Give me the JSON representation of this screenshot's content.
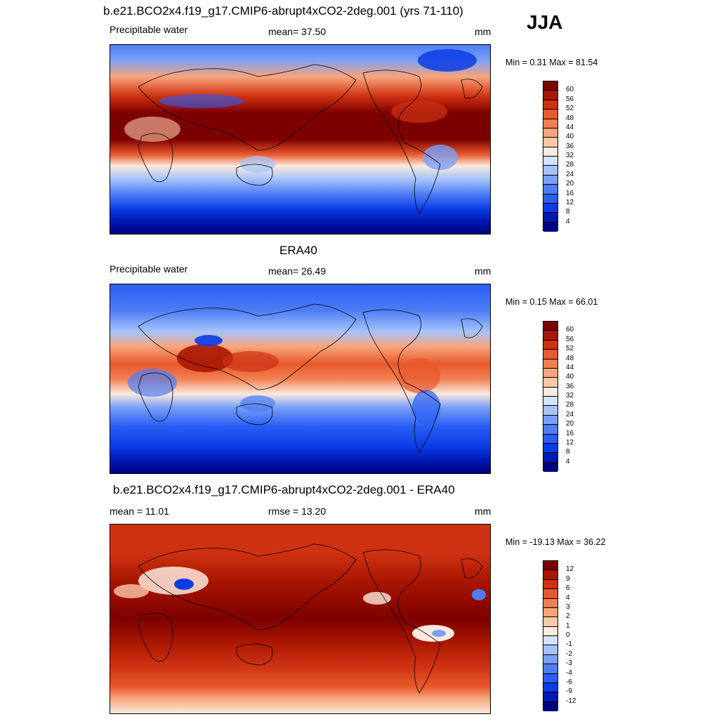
{
  "season": "JJA",
  "colors": {
    "abs": [
      "#000080",
      "#0019b4",
      "#0a3ce6",
      "#2a5ef5",
      "#4f7df5",
      "#7aa0f7",
      "#a5c3fa",
      "#d2e4fb",
      "#fbe9dd",
      "#fbc8a8",
      "#f8a47b",
      "#f27f52",
      "#e8592c",
      "#cf3212",
      "#a81600",
      "#7d0000"
    ],
    "diff": [
      "#000080",
      "#0019b4",
      "#0a3ce6",
      "#2a5ef5",
      "#4f7df5",
      "#7aa0f7",
      "#a5c3fa",
      "#d2e4fb",
      "#fbe9dd",
      "#fbc8a8",
      "#f8a47b",
      "#f27f52",
      "#e8592c",
      "#cf3212",
      "#a81600",
      "#7d0000"
    ]
  },
  "panels": [
    {
      "title": "b.e21.BCO2x4.f19_g17.CMIP6-abrupt4xCO2-2deg.001 (yrs 71-110)",
      "left_label": "Precipitable water",
      "mid_label": "mean=  37.50",
      "right_label": "mm",
      "minmax": "Min =   0.31 Max =  81.54",
      "legend_ticks": [
        "60",
        "56",
        "52",
        "48",
        "44",
        "40",
        "36",
        "32",
        "28",
        "24",
        "20",
        "16",
        "12",
        "8",
        "4"
      ]
    },
    {
      "title": "ERA40",
      "left_label": "Precipitable water",
      "mid_label": "mean=  26.49",
      "right_label": "mm",
      "minmax": "Min =   0.15 Max =  66.01",
      "legend_ticks": [
        "60",
        "56",
        "52",
        "48",
        "44",
        "40",
        "36",
        "32",
        "28",
        "24",
        "20",
        "16",
        "12",
        "8",
        "4"
      ]
    },
    {
      "title": "b.e21.BCO2x4.f19_g17.CMIP6-abrupt4xCO2-2deg.001 - ERA40",
      "left_label": "mean =  11.01",
      "mid_label": "rmse =  13.20",
      "right_label": "mm",
      "minmax": "Min = -19.13 Max =  36.22",
      "legend_ticks": [
        "12",
        "9",
        "6",
        "4",
        "3",
        "2",
        "1",
        "0",
        "-1",
        "-2",
        "-3",
        "-4",
        "-6",
        "-9",
        "-12"
      ]
    }
  ]
}
